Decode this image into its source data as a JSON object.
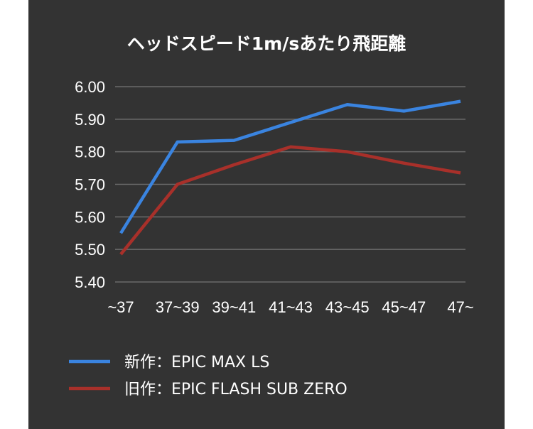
{
  "chart_data": {
    "type": "line",
    "title": "ヘッドスピード1m/sあたり飛距離",
    "categories": [
      "~37",
      "37~39",
      "39~41",
      "41~43",
      "43~45",
      "45~47",
      "47~"
    ],
    "ylim": [
      5.4,
      6.0
    ],
    "yticks": [
      "6.00",
      "5.90",
      "5.80",
      "5.70",
      "5.60",
      "5.50",
      "5.40"
    ],
    "grid": true,
    "legend_position": "bottom-left",
    "series": [
      {
        "name": "新作：EPIC MAX LS",
        "color": "#3a84e0",
        "values": [
          5.55,
          5.83,
          5.835,
          5.89,
          5.945,
          5.925,
          5.955
        ]
      },
      {
        "name": "旧作：EPIC FLASH SUB ZERO",
        "color": "#a8302a",
        "values": [
          5.485,
          5.7,
          5.76,
          5.815,
          5.8,
          5.765,
          5.735
        ]
      }
    ]
  }
}
